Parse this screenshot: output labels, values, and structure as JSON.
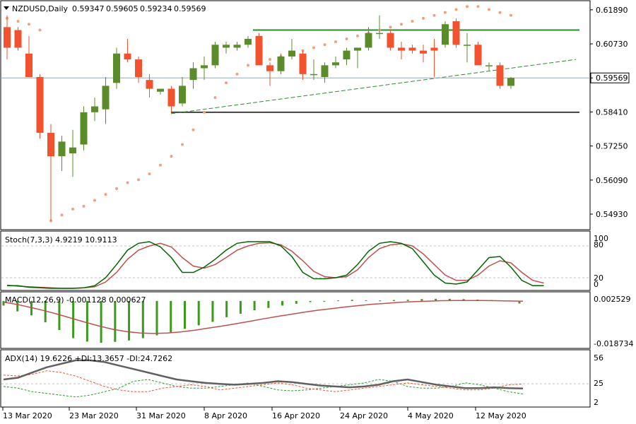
{
  "header": {
    "symbol": "NZDUSD,Daily",
    "ohlc": [
      "0.59347",
      "0.59605",
      "0.59234",
      "0.59569"
    ]
  },
  "price_axis": {
    "ticks": [
      "0.61890",
      "0.60730",
      "0.59569",
      "0.58410",
      "0.57250",
      "0.56090",
      "0.54930"
    ],
    "current_price": "0.59569"
  },
  "date_axis": [
    "13 Mar 2020",
    "23 Mar 2020",
    "31 Mar 2020",
    "8 Apr 2020",
    "16 Apr 2020",
    "24 Apr 2020",
    "4 May 2020",
    "12 May 2020"
  ],
  "colors": {
    "bull": "#5b8c2a",
    "bear": "#f2522e",
    "sar": "#f0a080",
    "stoch_main": "#006400",
    "stoch_signal": "#c0504d",
    "macd_hist": "#3a9a1a",
    "macd_signal": "#c0504d",
    "adx": "#606060",
    "plus_di": "#2f9b2f",
    "minus_di": "#f2522e",
    "resistance": "#2f8a2f",
    "support": "#404040",
    "trend": "#2f8a2f"
  },
  "panels": {
    "stoch": {
      "label": "Stoch(7,3,3) 4.9219 10.9113",
      "levels": [
        "100",
        "80",
        "20",
        "0"
      ]
    },
    "macd": {
      "label": "MACD(12,26,9) -0.001128 0.000627",
      "levels": [
        "0.002529",
        "-0.018734"
      ]
    },
    "adx": {
      "label": "ADX(14) 19.6226 +DI:13.3657 -DI:24.7262",
      "levels": [
        "56",
        "25",
        "2"
      ]
    }
  },
  "chart_data": {
    "type": "candlestick",
    "series": [
      {
        "o": 0.613,
        "h": 0.617,
        "l": 0.602,
        "c": 0.606
      },
      {
        "o": 0.612,
        "h": 0.613,
        "l": 0.605,
        "c": 0.606
      },
      {
        "o": 0.604,
        "h": 0.61,
        "l": 0.596,
        "c": 0.596
      },
      {
        "o": 0.596,
        "h": 0.597,
        "l": 0.575,
        "c": 0.577
      },
      {
        "o": 0.577,
        "h": 0.58,
        "l": 0.547,
        "c": 0.569
      },
      {
        "o": 0.569,
        "h": 0.576,
        "l": 0.564,
        "c": 0.574
      },
      {
        "o": 0.57,
        "h": 0.578,
        "l": 0.562,
        "c": 0.572
      },
      {
        "o": 0.573,
        "h": 0.586,
        "l": 0.571,
        "c": 0.584
      },
      {
        "o": 0.584,
        "h": 0.589,
        "l": 0.581,
        "c": 0.586
      },
      {
        "o": 0.585,
        "h": 0.596,
        "l": 0.58,
        "c": 0.593
      },
      {
        "o": 0.594,
        "h": 0.606,
        "l": 0.592,
        "c": 0.604
      },
      {
        "o": 0.604,
        "h": 0.609,
        "l": 0.601,
        "c": 0.602
      },
      {
        "o": 0.602,
        "h": 0.603,
        "l": 0.594,
        "c": 0.596
      },
      {
        "o": 0.595,
        "h": 0.597,
        "l": 0.589,
        "c": 0.592
      },
      {
        "o": 0.591,
        "h": 0.592,
        "l": 0.59,
        "c": 0.592
      },
      {
        "o": 0.592,
        "h": 0.593,
        "l": 0.584,
        "c": 0.586
      },
      {
        "o": 0.587,
        "h": 0.596,
        "l": 0.586,
        "c": 0.593
      },
      {
        "o": 0.595,
        "h": 0.601,
        "l": 0.592,
        "c": 0.599
      },
      {
        "o": 0.599,
        "h": 0.603,
        "l": 0.595,
        "c": 0.6
      },
      {
        "o": 0.6,
        "h": 0.608,
        "l": 0.599,
        "c": 0.607
      },
      {
        "o": 0.606,
        "h": 0.608,
        "l": 0.604,
        "c": 0.607
      },
      {
        "o": 0.606,
        "h": 0.608,
        "l": 0.605,
        "c": 0.607
      },
      {
        "o": 0.607,
        "h": 0.61,
        "l": 0.606,
        "c": 0.609
      },
      {
        "o": 0.61,
        "h": 0.611,
        "l": 0.6,
        "c": 0.6
      },
      {
        "o": 0.6,
        "h": 0.601,
        "l": 0.593,
        "c": 0.598
      },
      {
        "o": 0.598,
        "h": 0.604,
        "l": 0.597,
        "c": 0.603
      },
      {
        "o": 0.603,
        "h": 0.609,
        "l": 0.602,
        "c": 0.605
      },
      {
        "o": 0.604,
        "h": 0.605,
        "l": 0.595,
        "c": 0.597
      },
      {
        "o": 0.597,
        "h": 0.602,
        "l": 0.595,
        "c": 0.597
      },
      {
        "o": 0.596,
        "h": 0.601,
        "l": 0.594,
        "c": 0.6
      },
      {
        "o": 0.6,
        "h": 0.603,
        "l": 0.599,
        "c": 0.601
      },
      {
        "o": 0.602,
        "h": 0.606,
        "l": 0.6,
        "c": 0.605
      },
      {
        "o": 0.605,
        "h": 0.606,
        "l": 0.599,
        "c": 0.606
      },
      {
        "o": 0.606,
        "h": 0.613,
        "l": 0.605,
        "c": 0.611
      },
      {
        "o": 0.611,
        "h": 0.617,
        "l": 0.609,
        "c": 0.611
      },
      {
        "o": 0.611,
        "h": 0.612,
        "l": 0.605,
        "c": 0.606
      },
      {
        "o": 0.606,
        "h": 0.608,
        "l": 0.602,
        "c": 0.605
      },
      {
        "o": 0.606,
        "h": 0.607,
        "l": 0.604,
        "c": 0.605
      },
      {
        "o": 0.605,
        "h": 0.607,
        "l": 0.601,
        "c": 0.604
      },
      {
        "o": 0.606,
        "h": 0.609,
        "l": 0.596,
        "c": 0.605
      },
      {
        "o": 0.607,
        "h": 0.615,
        "l": 0.606,
        "c": 0.614
      },
      {
        "o": 0.615,
        "h": 0.616,
        "l": 0.606,
        "c": 0.607
      },
      {
        "o": 0.607,
        "h": 0.611,
        "l": 0.601,
        "c": 0.607
      },
      {
        "o": 0.607,
        "h": 0.608,
        "l": 0.6,
        "c": 0.6
      },
      {
        "o": 0.6,
        "h": 0.601,
        "l": 0.598,
        "c": 0.6
      },
      {
        "o": 0.6,
        "h": 0.601,
        "l": 0.592,
        "c": 0.593
      },
      {
        "o": 0.593,
        "h": 0.596,
        "l": 0.592,
        "c": 0.5957
      }
    ],
    "ylim": [
      0.544,
      0.622
    ],
    "sar": [
      0.616,
      0.615,
      0.614,
      0.612,
      0.547,
      0.549,
      0.551,
      0.552,
      0.554,
      0.556,
      0.558,
      0.56,
      0.561,
      0.563,
      0.566,
      0.569,
      0.573,
      0.578,
      0.584,
      0.589,
      0.594,
      0.597,
      0.6,
      0.601,
      0.602,
      0.603,
      0.604,
      0.605,
      0.606,
      0.607,
      0.608,
      0.609,
      0.61,
      0.611,
      0.612,
      0.613,
      0.614,
      0.615,
      0.616,
      0.617,
      0.618,
      0.619,
      0.62,
      0.62,
      0.619,
      0.618,
      0.617
    ],
    "horizontal_lines": [
      {
        "name": "resistance",
        "value": 0.612
      },
      {
        "name": "support",
        "value": 0.584
      }
    ],
    "trendline": {
      "from": {
        "bar": 27,
        "value": 0.5835
      },
      "to": {
        "bar": 76,
        "value": 0.602
      }
    },
    "stochastic": {
      "main": [
        5,
        5,
        2,
        1,
        0,
        0,
        0,
        1,
        5,
        20,
        45,
        72,
        85,
        88,
        78,
        58,
        30,
        30,
        40,
        55,
        72,
        85,
        88,
        88,
        88,
        80,
        60,
        30,
        18,
        18,
        20,
        25,
        45,
        70,
        85,
        88,
        85,
        75,
        50,
        25,
        10,
        8,
        12,
        35,
        58,
        60,
        40,
        15,
        5,
        5
      ],
      "signal": [
        6,
        4,
        3,
        2,
        1,
        0,
        0,
        1,
        3,
        12,
        30,
        55,
        72,
        80,
        85,
        78,
        58,
        42,
        38,
        45,
        58,
        72,
        80,
        85,
        86,
        82,
        70,
        52,
        32,
        22,
        20,
        22,
        35,
        58,
        75,
        82,
        84,
        80,
        65,
        45,
        25,
        15,
        15,
        25,
        42,
        52,
        48,
        30,
        15,
        10
      ]
    },
    "macd": {
      "hist": [
        -0.002,
        -0.0045,
        -0.0062,
        -0.0092,
        -0.0125,
        -0.016,
        -0.0175,
        -0.018,
        -0.0176,
        -0.017,
        -0.016,
        -0.0148,
        -0.0135,
        -0.012,
        -0.0105,
        -0.009,
        -0.007,
        -0.0055,
        -0.004,
        -0.003,
        -0.002,
        -0.0012,
        -0.0005,
        -0.0002,
        0.0002,
        0.0005,
        0.0003,
        0.0002,
        0.0004,
        0.0005,
        0.0008,
        0.0009,
        0.0009,
        0.0008,
        0.0006,
        0.0004,
        0.0001,
        -0.0011
      ],
      "signal": [
        -0.0005,
        -0.0015,
        -0.0028,
        -0.0042,
        -0.0058,
        -0.0075,
        -0.0092,
        -0.0108,
        -0.0122,
        -0.0132,
        -0.0138,
        -0.014,
        -0.0138,
        -0.0133,
        -0.0126,
        -0.0117,
        -0.0108,
        -0.0098,
        -0.0088,
        -0.0077,
        -0.0067,
        -0.0058,
        -0.0048,
        -0.004,
        -0.0033,
        -0.0026,
        -0.002,
        -0.0014,
        -0.001,
        -0.0006,
        -0.0003,
        -0.0001,
        0.0001,
        0.0002,
        0.0002,
        0.0002,
        0.0001,
        0.0,
        -0.0001
      ],
      "ylim": [
        -0.0195,
        0.003
      ]
    },
    "adx": {
      "adx": [
        30,
        32,
        38,
        44,
        48,
        52,
        52,
        50,
        46,
        42,
        38,
        34,
        30,
        28,
        26,
        25,
        24,
        25,
        26,
        28,
        27,
        25,
        23,
        22,
        21,
        22,
        24,
        28,
        30,
        27,
        24,
        22,
        20,
        20,
        21,
        20,
        19.6
      ],
      "plus_di": [
        22,
        20,
        16,
        14,
        12,
        10,
        12,
        16,
        20,
        28,
        30,
        26,
        22,
        20,
        20,
        22,
        24,
        26,
        22,
        18,
        17,
        18,
        20,
        22,
        24,
        26,
        30,
        28,
        22,
        20,
        20,
        22,
        26,
        24,
        20,
        16,
        13.4
      ],
      "minus_di": [
        35,
        34,
        36,
        40,
        38,
        34,
        28,
        22,
        18,
        16,
        16,
        20,
        22,
        24,
        22,
        18,
        20,
        22,
        24,
        26,
        24,
        20,
        18,
        16,
        18,
        20,
        22,
        24,
        26,
        24,
        22,
        20,
        18,
        18,
        20,
        24,
        24.7
      ],
      "ylim": [
        0,
        60
      ]
    }
  }
}
